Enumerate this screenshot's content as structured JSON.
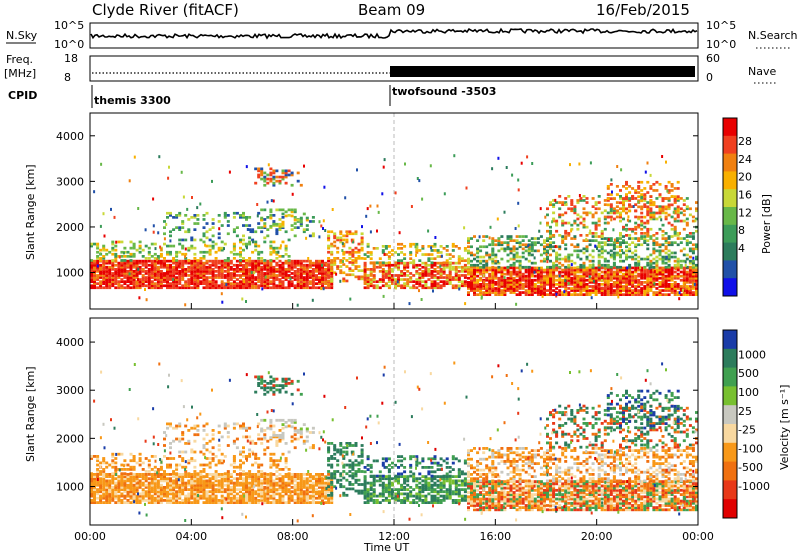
{
  "header": {
    "station": "Clyde River (fitACF)",
    "beam": "Beam 09",
    "date": "16/Feb/2015"
  },
  "param_panels": {
    "nsky_label": "N.Sky",
    "nsky_ticks": [
      "10^5",
      "10^0"
    ],
    "nsearch_label": "N.Search",
    "nsearch_ticks": [
      "10^5",
      "10^0"
    ],
    "freq_label_1": "Freq.",
    "freq_label_2": "[MHz]",
    "freq_ticks": [
      "18",
      "8"
    ],
    "nave_label": "Nave",
    "nave_ticks": [
      "60",
      "0"
    ],
    "cpid_label": "CPID",
    "cpid_modes": [
      "themis 3300",
      "twofsound -3503"
    ],
    "cpid_switch_time": "12:00"
  },
  "chart_data": [
    {
      "type": "heatmap",
      "title": "",
      "xlabel": "",
      "ylabel": "Slant Range [km]",
      "ylim": [
        200,
        4500
      ],
      "yticks": [
        "1000",
        "2000",
        "3000",
        "4000"
      ],
      "colorbar": {
        "label": "Power [dB]",
        "ticks": [
          "28",
          "24",
          "20",
          "16",
          "12",
          "8",
          "4"
        ],
        "colors": [
          "#e80000",
          "#f04020",
          "#f08010",
          "#f8b000",
          "#c8d838",
          "#68b848",
          "#3c9c58",
          "#2c7c5c",
          "#2050a8",
          "#1010e8"
        ]
      }
    },
    {
      "type": "heatmap",
      "title": "",
      "xlabel": "Time UT",
      "ylabel": "Slant Range [km]",
      "ylim": [
        200,
        4500
      ],
      "yticks": [
        "1000",
        "2000",
        "3000",
        "4000"
      ],
      "xticks": [
        "00:00",
        "04:00",
        "08:00",
        "12:00",
        "16:00",
        "20:00",
        "00:00"
      ],
      "colorbar": {
        "label": "Velocity [m s⁻¹]",
        "ticks": [
          "1000",
          "500",
          "100",
          "25",
          "-25",
          "-100",
          "-500",
          "-1000"
        ],
        "colors": [
          "#1a3ca8",
          "#2c7c5c",
          "#40a050",
          "#78c030",
          "#c8c8c0",
          "#f8d8a0",
          "#f89818",
          "#f07010",
          "#e83818",
          "#e00000"
        ]
      }
    }
  ]
}
